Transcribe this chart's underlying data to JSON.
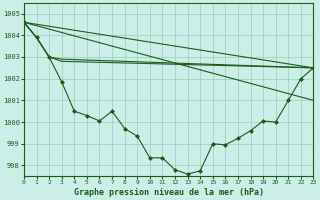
{
  "background_color": "#cceee8",
  "grid_color": "#99ccbb",
  "line_color": "#1a5c1a",
  "title": "Graphe pression niveau de la mer (hPa)",
  "title_fontsize": 6.0,
  "xlim": [
    0,
    23
  ],
  "ylim": [
    997.5,
    1005.5
  ],
  "yticks": [
    998,
    999,
    1000,
    1001,
    1002,
    1003,
    1004,
    1005
  ],
  "xticks": [
    0,
    1,
    2,
    3,
    4,
    5,
    6,
    7,
    8,
    9,
    10,
    11,
    12,
    13,
    14,
    15,
    16,
    17,
    18,
    19,
    20,
    21,
    22,
    23
  ],
  "series": [
    {
      "x": [
        0,
        1,
        2,
        3,
        23
      ],
      "y": [
        1004.6,
        1003.9,
        1003.0,
        1002.9,
        1002.5
      ],
      "marker": null,
      "linestyle": "-",
      "linewidth": 0.8
    },
    {
      "x": [
        0,
        1,
        2,
        3,
        23
      ],
      "y": [
        1004.6,
        1003.9,
        1003.0,
        1002.8,
        1002.5
      ],
      "marker": null,
      "linestyle": "-",
      "linewidth": 0.8
    },
    {
      "x": [
        0,
        1,
        2,
        3,
        4,
        5,
        6,
        7,
        8,
        9,
        10,
        11,
        12,
        13,
        14,
        15,
        16,
        17,
        18,
        19,
        20,
        21,
        22,
        23
      ],
      "y": [
        1004.6,
        1003.9,
        1003.0,
        1001.85,
        1000.5,
        1000.3,
        1000.05,
        1000.5,
        999.7,
        999.35,
        998.35,
        998.35,
        997.8,
        997.6,
        997.75,
        999.0,
        998.95,
        999.25,
        999.6,
        1000.05,
        1000.0,
        1001.0,
        1002.0,
        1002.5
      ],
      "marker": "D",
      "markersize": 2.0,
      "linestyle": "-",
      "linewidth": 0.8
    }
  ],
  "straight_lines": [
    {
      "x": [
        0,
        23
      ],
      "y": [
        1004.6,
        1002.5
      ],
      "linewidth": 0.8
    },
    {
      "x": [
        0,
        23
      ],
      "y": [
        1004.6,
        1001.0
      ],
      "linewidth": 0.8
    }
  ]
}
